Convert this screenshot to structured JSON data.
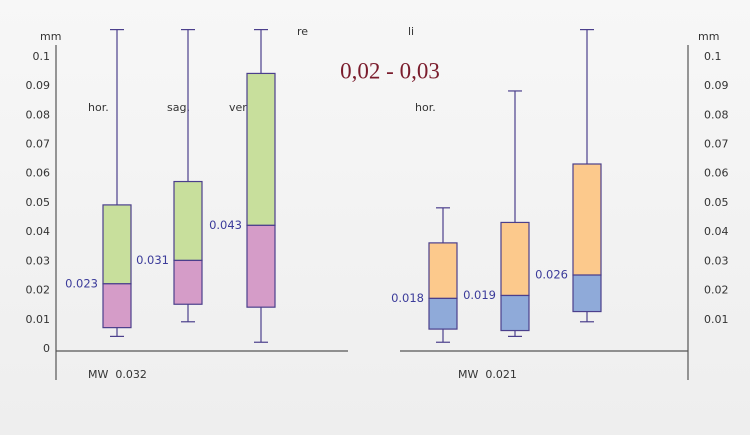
{
  "chart_data": {
    "type": "box",
    "title": "0,02 - 0,03",
    "ylim": [
      0,
      0.11
    ],
    "panels": [
      {
        "name": "re",
        "y_label": "mm",
        "categories": [
          "hor.",
          "sag.",
          "ver."
        ],
        "upper_color": "#c8df9c",
        "lower_color": "#d59cc8",
        "outline": "#4b3f8c",
        "yticks": [
          0,
          0.01,
          0.02,
          0.03,
          0.04,
          0.05,
          0.06,
          0.07,
          0.08,
          0.09,
          0.1
        ],
        "mean_label": "MW  0.032",
        "boxes": [
          {
            "min": 0.005,
            "q1": 0.008,
            "median": 0.023,
            "q3": 0.05,
            "max": 0.11
          },
          {
            "min": 0.01,
            "q1": 0.016,
            "median": 0.031,
            "q3": 0.058,
            "max": 0.11
          },
          {
            "min": 0.003,
            "q1": 0.015,
            "median": 0.043,
            "q3": 0.095,
            "max": 0.11
          }
        ]
      },
      {
        "name": "li",
        "y_label": "mm",
        "categories": [
          "hor.",
          null,
          null
        ],
        "upper_color": "#fcc98c",
        "lower_color": "#8faad9",
        "outline": "#4b3f8c",
        "yticks": [
          0.01,
          0.02,
          0.03,
          0.04,
          0.05,
          0.06,
          0.07,
          0.08,
          0.09,
          0.1
        ],
        "mean_label": "MW  0.021",
        "boxes": [
          {
            "min": 0.003,
            "q1": 0.0075,
            "median": 0.018,
            "q3": 0.037,
            "max": 0.049
          },
          {
            "min": 0.005,
            "q1": 0.007,
            "median": 0.019,
            "q3": 0.044,
            "max": 0.089
          },
          {
            "min": 0.01,
            "q1": 0.0135,
            "median": 0.026,
            "q3": 0.064,
            "max": 0.11
          }
        ]
      }
    ]
  }
}
